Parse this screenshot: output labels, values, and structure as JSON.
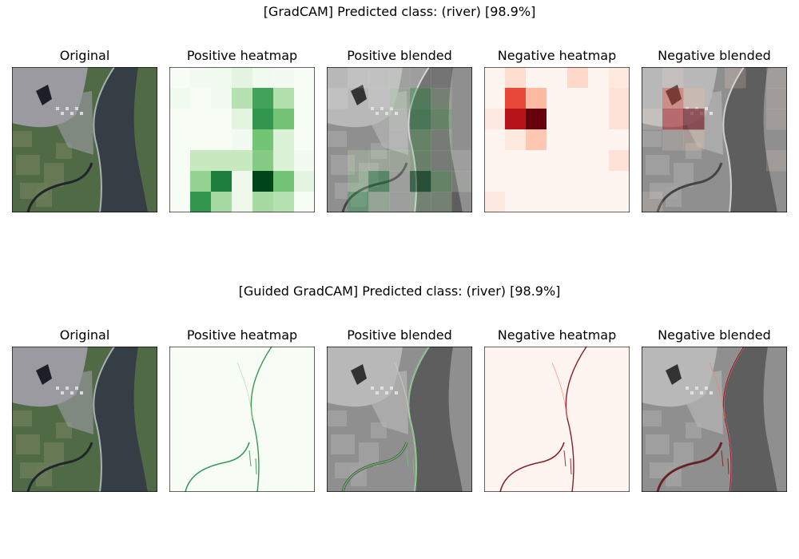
{
  "rows": [
    {
      "title": "[GradCAM] Predicted class: (river) [98.9%]",
      "panels": [
        {
          "title": "Original"
        },
        {
          "title": "Positive heatmap"
        },
        {
          "title": "Positive blended"
        },
        {
          "title": "Negative heatmap"
        },
        {
          "title": "Negative blended"
        }
      ]
    },
    {
      "title": "[Guided GradCAM] Predicted class: (river) [98.9%]",
      "panels": [
        {
          "title": "Original"
        },
        {
          "title": "Positive heatmap"
        },
        {
          "title": "Positive blended"
        },
        {
          "title": "Negative heatmap"
        },
        {
          "title": "Negative blended"
        }
      ]
    }
  ],
  "colors": {
    "positive_colormap": "Greens",
    "negative_colormap": "Reds",
    "land": "#4f6a45",
    "river": "#353d45",
    "urban": "#9a9aa0"
  },
  "gradcam_positive_grid": [
    [
      0.0,
      0.02,
      0.03,
      0.1,
      0.03,
      0.02,
      0.0
    ],
    [
      0.03,
      0.0,
      0.02,
      0.3,
      0.65,
      0.32,
      0.0
    ],
    [
      0.0,
      0.0,
      0.0,
      0.1,
      0.7,
      0.5,
      0.0
    ],
    [
      0.0,
      0.0,
      0.0,
      0.02,
      0.5,
      0.15,
      0.0
    ],
    [
      0.0,
      0.25,
      0.25,
      0.25,
      0.45,
      0.15,
      0.02
    ],
    [
      0.0,
      0.4,
      0.8,
      0.05,
      1.0,
      0.5,
      0.1
    ],
    [
      0.0,
      0.7,
      0.35,
      0.05,
      0.35,
      0.3,
      0.0
    ]
  ],
  "gradcam_negative_grid": [
    [
      0.0,
      0.1,
      0.0,
      0.0,
      0.12,
      0.0,
      0.05
    ],
    [
      0.0,
      0.6,
      0.25,
      0.0,
      0.0,
      0.0,
      0.08
    ],
    [
      0.05,
      0.8,
      1.0,
      0.0,
      0.0,
      0.0,
      0.08
    ],
    [
      0.0,
      0.05,
      0.2,
      0.0,
      0.0,
      0.0,
      0.0
    ],
    [
      0.0,
      0.0,
      0.0,
      0.0,
      0.0,
      0.0,
      0.08
    ],
    [
      0.0,
      0.0,
      0.0,
      0.0,
      0.0,
      0.0,
      0.0
    ],
    [
      0.05,
      0.0,
      0.0,
      0.0,
      0.0,
      0.0,
      0.0
    ]
  ]
}
